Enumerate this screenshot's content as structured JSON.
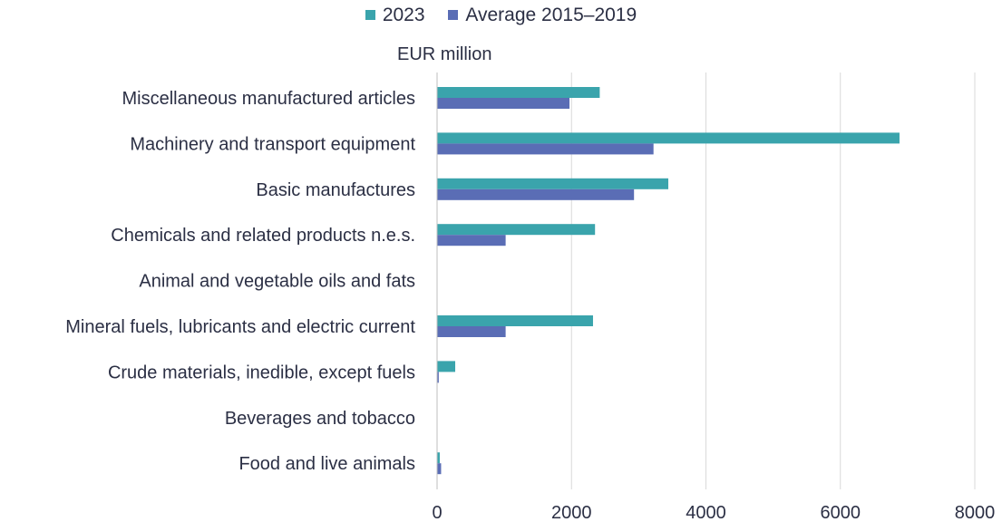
{
  "chart_data": {
    "type": "bar",
    "orientation": "horizontal",
    "title": "",
    "unit_label": "EUR million",
    "categories": [
      "Miscellaneous manufactured articles",
      "Machinery and transport equipment",
      "Basic manufactures",
      "Chemicals and related products n.e.s.",
      "Animal and vegetable oils and fats",
      "Mineral fuels, lubricants and electric current",
      "Crude materials, inedible,  except fuels",
      "Beverages and tobacco",
      "Food and live animals"
    ],
    "series": [
      {
        "name": "2023",
        "color": "#3aa4ac",
        "values": [
          2420,
          6880,
          3440,
          2350,
          0,
          2320,
          270,
          0,
          40
        ]
      },
      {
        "name": "Average 2015–2019",
        "color": "#5a6db5",
        "values": [
          1970,
          3220,
          2930,
          1020,
          0,
          1020,
          25,
          0,
          60
        ]
      }
    ],
    "xlim": [
      0,
      8000
    ],
    "xticks": [
      "0",
      "2000",
      "4000",
      "6000",
      "8000"
    ],
    "grid": "vertical",
    "legend_position": "top-center"
  }
}
